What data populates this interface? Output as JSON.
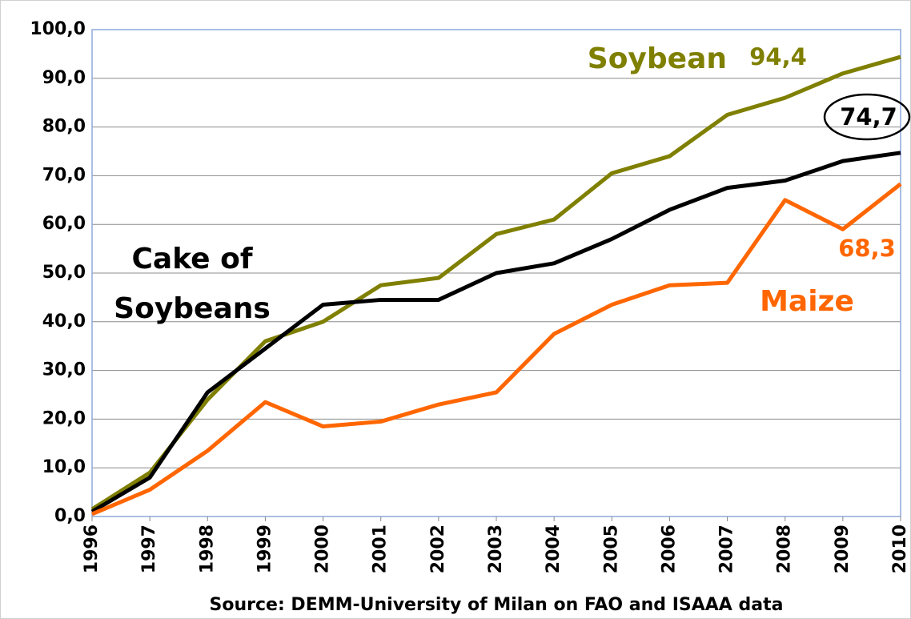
{
  "chart_data": {
    "type": "line",
    "x_label": "Source: DEMM-University of Milan on FAO and ISAAA data",
    "categories": [
      "1996",
      "1997",
      "1998",
      "1999",
      "2000",
      "2001",
      "2002",
      "2003",
      "2004",
      "2005",
      "2006",
      "2007",
      "2008",
      "2009",
      "2010"
    ],
    "series": [
      {
        "name": "Soybean",
        "color": "#7f7f00",
        "values": [
          1.5,
          9,
          24,
          36,
          40,
          47.5,
          49,
          58,
          61,
          70.5,
          74,
          82.5,
          86,
          91,
          94.4
        ],
        "value_labels": [
          null,
          null,
          null,
          null,
          null,
          null,
          null,
          null,
          null,
          null,
          null,
          null,
          null,
          null,
          "94,4"
        ]
      },
      {
        "name": "Cake of Soybeans",
        "color": "#000000",
        "values": [
          1,
          8,
          25.5,
          34.5,
          43.5,
          44.5,
          44.5,
          50,
          52,
          57,
          63,
          67.5,
          69,
          73,
          74.7
        ],
        "value_labels": [
          null,
          null,
          null,
          null,
          null,
          null,
          null,
          null,
          null,
          null,
          null,
          null,
          null,
          null,
          "74,7"
        ]
      },
      {
        "name": "Maize",
        "color": "#ff6600",
        "values": [
          0.5,
          5.5,
          13.5,
          23.5,
          18.5,
          19.5,
          23,
          25.5,
          37.5,
          43.5,
          47.5,
          48,
          65,
          59,
          68.3
        ],
        "value_labels": [
          null,
          null,
          null,
          null,
          null,
          null,
          null,
          null,
          null,
          null,
          null,
          null,
          null,
          null,
          "68,3"
        ]
      }
    ],
    "ylim": [
      0,
      100
    ],
    "yticks": [
      {
        "value": 0,
        "label": "0,0"
      },
      {
        "value": 10,
        "label": "10,0"
      },
      {
        "value": 20,
        "label": "20,0"
      },
      {
        "value": 30,
        "label": "30,0"
      },
      {
        "value": 40,
        "label": "40,0"
      },
      {
        "value": 50,
        "label": "50,0"
      },
      {
        "value": 60,
        "label": "60,0"
      },
      {
        "value": 70,
        "label": "70,0"
      },
      {
        "value": 80,
        "label": "80,0"
      },
      {
        "value": 90,
        "label": "90,0"
      },
      {
        "value": 100,
        "label": "100,0"
      }
    ],
    "grid": true
  }
}
